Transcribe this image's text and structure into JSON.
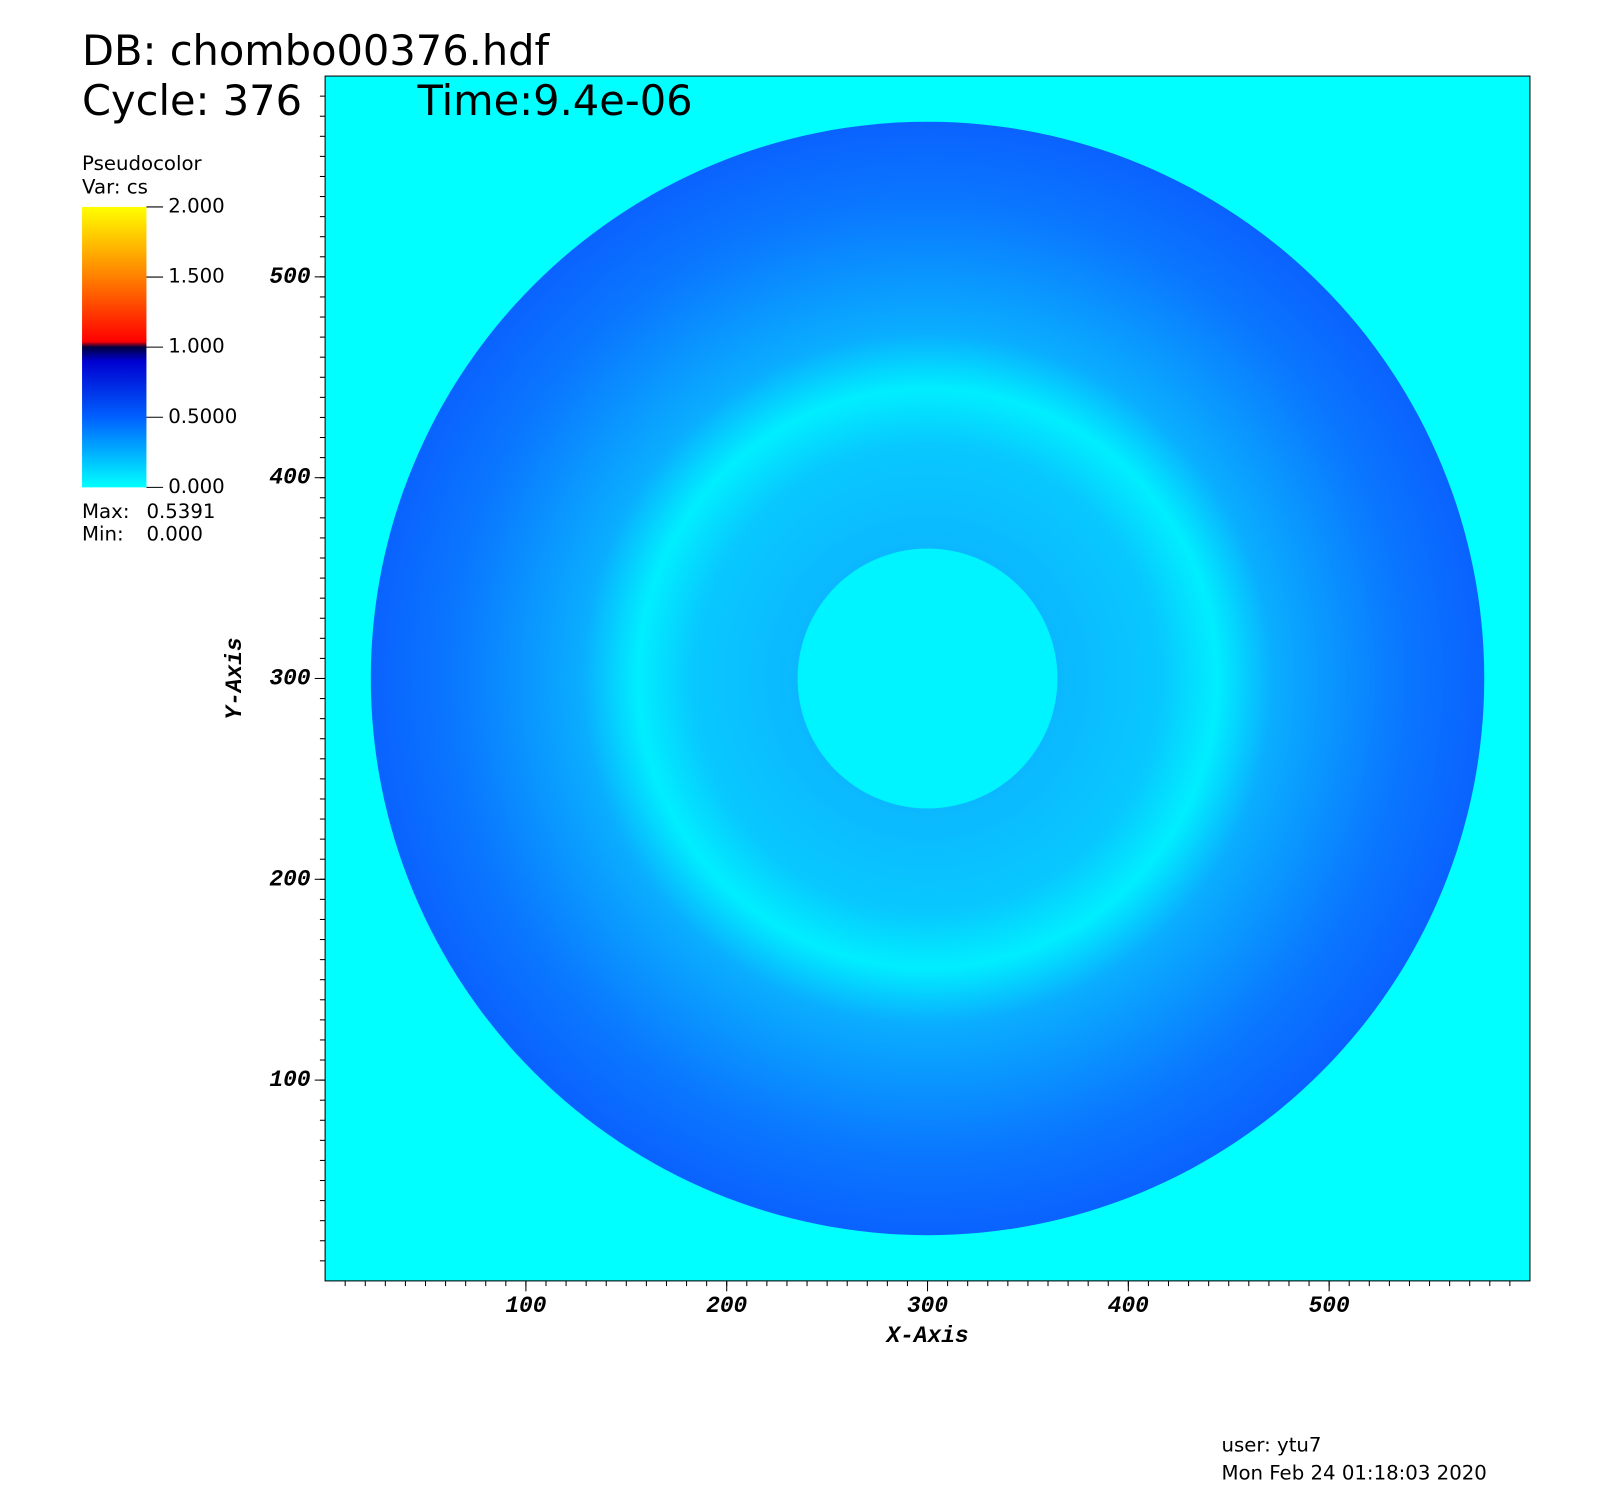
{
  "chart_data": {
    "type": "pseudocolor",
    "title_lines": [
      "DB: chombo00376.hdf",
      "Cycle: 376",
      "Time:9.4e-06"
    ],
    "legend": {
      "plot": "Pseudocolor",
      "variable": "Var: cs",
      "range": [
        0,
        2
      ],
      "ticks": [
        {
          "value": 2,
          "label": "2.000"
        },
        {
          "value": 1.5,
          "label": "1.500"
        },
        {
          "value": 1,
          "label": "1.000"
        },
        {
          "value": 0.5,
          "label": "0.5000"
        },
        {
          "value": 0,
          "label": "0.000"
        }
      ],
      "max_label": "Max:",
      "max": 0.5391,
      "min_label": "Min:",
      "min": {
        "value": 0,
        "label": "0.000"
      }
    },
    "x_label": "X-Axis",
    "y_label": "Y-Axis",
    "xlim": [
      0,
      600
    ],
    "ylim": [
      0,
      600
    ],
    "xticks": [
      100,
      200,
      300,
      400,
      500
    ],
    "yticks": [
      100,
      200,
      300,
      400,
      500
    ],
    "footer": [
      "user: ytu7",
      "Mon Feb 24 01:18:03 2020"
    ]
  }
}
